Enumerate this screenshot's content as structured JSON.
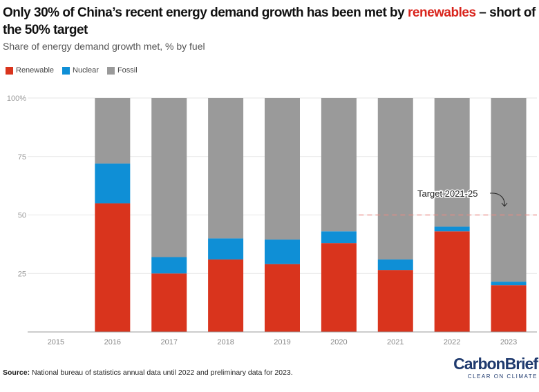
{
  "title_part1": "Only 30% of China’s recent energy demand growth has been met by ",
  "title_highlight": "renewables",
  "title_part2": " – short of the 50% target",
  "subtitle": "Share of energy demand growth met, % by fuel",
  "source_label": "Source:",
  "source_text": " National bureau of statistics annual data until 2022 and preliminary data for 2023.",
  "logo_text": "CarbonBrief",
  "logo_tagline": "CLEAR ON CLIMATE",
  "colors": {
    "renewable": "#d9341d",
    "nuclear": "#0f8fd6",
    "fossil": "#9a9a9a",
    "highlight": "#d9251d",
    "target_line": "#e88a84"
  },
  "chart_data": {
    "type": "bar",
    "stacked": true,
    "categories": [
      "2015",
      "2016",
      "2017",
      "2018",
      "2019",
      "2020",
      "2021",
      "2022",
      "2023"
    ],
    "series": [
      {
        "name": "Renewable",
        "values": [
          null,
          55,
          25,
          31,
          29,
          38,
          26.5,
          43,
          20
        ]
      },
      {
        "name": "Nuclear",
        "values": [
          null,
          17,
          7,
          9,
          10.5,
          5,
          4.5,
          2,
          1.5
        ]
      },
      {
        "name": "Fossil",
        "values": [
          null,
          28,
          68,
          60,
          60.5,
          57,
          69,
          55,
          78.5
        ]
      }
    ],
    "ylim": [
      0,
      100
    ],
    "yticks": [
      25,
      50,
      75,
      100
    ],
    "ytick_labels": [
      "25",
      "50",
      "75",
      "100%"
    ],
    "grid": true,
    "legend_position": "top-left",
    "annotations": [
      {
        "text": "Target 2021-25",
        "y": 50,
        "from_category": "2021"
      }
    ]
  }
}
